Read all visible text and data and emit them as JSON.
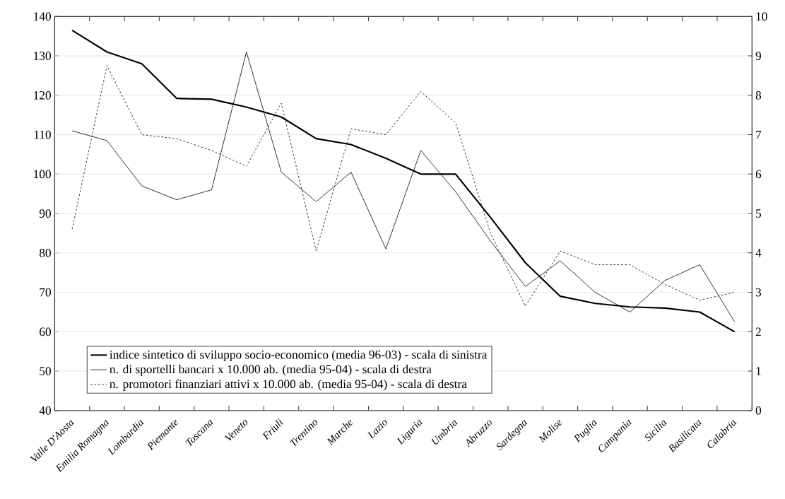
{
  "chart_data": {
    "type": "line",
    "categories": [
      "Valle D'Aosta",
      "Emilia Romagna",
      "Lombardia",
      "Piemonte",
      "Toscana",
      "Veneto",
      "Friuli",
      "Trentino",
      "Marche",
      "Lazio",
      "Liguria",
      "Umbria",
      "Abruzzo",
      "Sardegna",
      "Molise",
      "Puglia",
      "Campania",
      "Sicilia",
      "Basilicata",
      "Calabria"
    ],
    "series": [
      {
        "name": "indice sintetico di sviluppo socio-economico (media 96-03) - scala di sinistra",
        "color": "#000000",
        "line_style": "solid",
        "values": [
          136.5,
          131,
          128,
          119.2,
          119,
          117,
          114.5,
          109,
          107.5,
          104,
          100,
          100,
          89,
          77.5,
          69,
          67.2,
          66.3,
          66,
          65,
          60
        ]
      },
      {
        "name": "n. di sportelli bancari x 10.000 ab. (media 95-04) - scala di destra",
        "color": "#000000",
        "line_style": "solid",
        "axis": "y2",
        "values": [
          7.1,
          6.85,
          5.7,
          5.35,
          5.6,
          9.1,
          6.05,
          5.3,
          6.05,
          4.1,
          6.6,
          5.55,
          4.3,
          3.15,
          3.8,
          3.0,
          2.5,
          3.3,
          3.7,
          2.25
        ]
      },
      {
        "name": "n. promotori finanziari attivi x 10.000 ab. (media 95-04) - scala di destra",
        "color": "#000000",
        "line_style": "dotted",
        "axis": "y2",
        "values": [
          4.6,
          8.75,
          7.0,
          6.9,
          6.6,
          6.2,
          7.8,
          4.05,
          7.15,
          7.0,
          8.1,
          7.3,
          4.5,
          2.65,
          4.05,
          3.7,
          3.7,
          3.2,
          2.8,
          3.0
        ]
      }
    ],
    "ylim": [
      40,
      140
    ],
    "yticks": [
      40,
      50,
      60,
      70,
      80,
      90,
      100,
      110,
      120,
      130,
      140
    ],
    "y2lim": [
      0,
      10
    ],
    "y2ticks": [
      0,
      1,
      2,
      3,
      4,
      5,
      6,
      7,
      8,
      9,
      10
    ],
    "grid": "y",
    "legend": "bottom left",
    "marker": "none"
  }
}
